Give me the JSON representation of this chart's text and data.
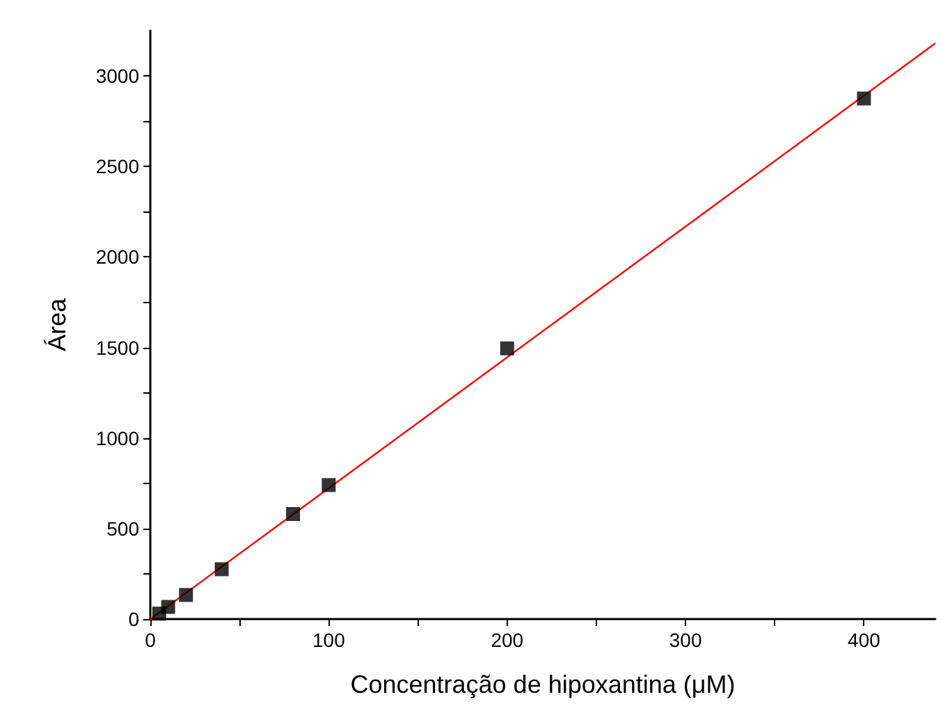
{
  "chart_data": {
    "type": "scatter",
    "xlabel": "Concentração de hipoxantina (μM)",
    "ylabel": "Área",
    "xlim": [
      0,
      440
    ],
    "ylim": [
      0,
      3250
    ],
    "xticks": [
      0,
      {
        "value": 50,
        "label": null
      },
      100,
      {
        "value": 150,
        "label": null
      },
      200,
      {
        "value": 250,
        "label": null
      },
      300,
      {
        "value": 350,
        "label": null
      },
      400
    ],
    "yticks": [
      0,
      {
        "value": 250,
        "label": null
      },
      500,
      {
        "value": 750,
        "label": null
      },
      1000,
      {
        "value": 1250,
        "label": null
      },
      1500,
      {
        "value": 1750,
        "label": null
      },
      2000,
      {
        "value": 2250,
        "label": null
      },
      2500,
      {
        "value": 2750,
        "label": null
      },
      3000
    ],
    "grid": false,
    "marker": "square",
    "series": [
      {
        "color": "#000000",
        "x": [
          5,
          10,
          20,
          40,
          80,
          100,
          200,
          400
        ],
        "values": [
          30,
          67,
          133,
          275,
          580,
          740,
          1495,
          2875
        ]
      },
      {
        "type": "line",
        "color": "#ff0000",
        "marker": "none",
        "line_style": "solid",
        "x": [
          0,
          440
        ],
        "values": [
          0,
          3180
        ]
      }
    ]
  }
}
